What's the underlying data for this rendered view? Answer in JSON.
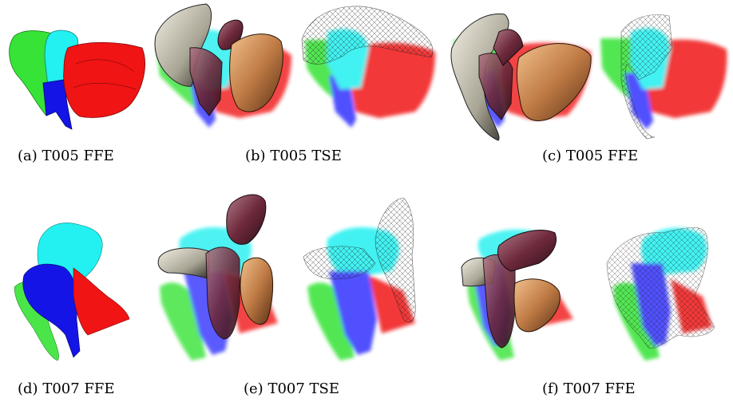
{
  "figure": {
    "captions": [
      {
        "label": "(a)",
        "text": "T005 FFE"
      },
      {
        "label": "(b)",
        "text": "T005 TSE"
      },
      {
        "label": "(c)",
        "text": "T005 FFE"
      },
      {
        "label": "(d)",
        "text": "T007 FFE"
      },
      {
        "label": "(e)",
        "text": "T007 TSE"
      },
      {
        "label": "(f)",
        "text": "T007 FFE"
      }
    ]
  }
}
